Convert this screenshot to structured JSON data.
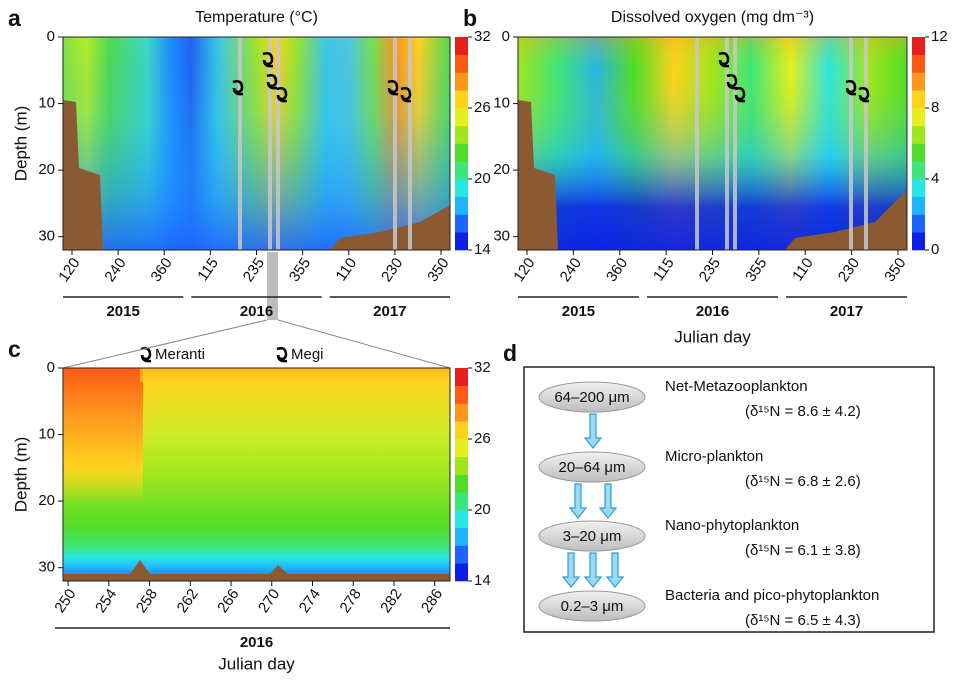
{
  "chart_data": [
    {
      "type": "contour",
      "label": "a",
      "title": "Temperature (°C)",
      "y_label": "Depth (m)",
      "ylim": [
        0,
        32
      ],
      "yticks": [
        0,
        10,
        20,
        30
      ],
      "y_inverted": true,
      "x_tick_labels": [
        "120",
        "240",
        "360",
        "115",
        "235",
        "355",
        "110",
        "230",
        "350"
      ],
      "years": [
        "2015",
        "2016",
        "2017"
      ],
      "clim": [
        14,
        32
      ],
      "cticks": [
        14,
        20,
        26,
        32
      ],
      "colormap": [
        "#0a1ee6",
        "#1e64ff",
        "#1eb4ff",
        "#28e6e6",
        "#3ce67a",
        "#50dc28",
        "#a0e61e",
        "#e6f01e",
        "#ffd21e",
        "#ff961e",
        "#ff5a14",
        "#e61e1e"
      ]
    },
    {
      "type": "contour",
      "label": "b",
      "title": "Dissolved oxygen (mg dm⁻³)",
      "x_label": "Julian day",
      "ylim": [
        0,
        32
      ],
      "yticks": [
        0,
        10,
        20,
        30
      ],
      "y_inverted": true,
      "x_tick_labels": [
        "120",
        "240",
        "360",
        "115",
        "235",
        "355",
        "110",
        "230",
        "350"
      ],
      "years": [
        "2015",
        "2016",
        "2017"
      ],
      "clim": [
        0,
        12
      ],
      "cticks": [
        0,
        4,
        8,
        12
      ],
      "colormap": [
        "#0a1ee6",
        "#1e64ff",
        "#1eb4ff",
        "#28e6e6",
        "#3ce67a",
        "#50dc28",
        "#a0e61e",
        "#e6f01e",
        "#ffd21e",
        "#ff961e",
        "#ff5a14",
        "#e61e1e"
      ]
    },
    {
      "type": "contour",
      "label": "c",
      "y_label": "Depth (m)",
      "x_label": "Julian day",
      "ylim": [
        0,
        32
      ],
      "yticks": [
        0,
        10,
        20,
        30
      ],
      "y_inverted": true,
      "xlim": [
        249.5,
        287.5
      ],
      "xticks": [
        250,
        254,
        258,
        262,
        266,
        270,
        274,
        278,
        282,
        286
      ],
      "years": [
        "2016"
      ],
      "events": [
        "Meranti",
        "Megi"
      ],
      "clim": [
        14,
        32
      ],
      "cticks": [
        14,
        20,
        26,
        32
      ],
      "colormap": [
        "#0a1ee6",
        "#1e64ff",
        "#1eb4ff",
        "#28e6e6",
        "#3ce67a",
        "#50dc28",
        "#a0e61e",
        "#e6f01e",
        "#ffd21e",
        "#ff961e",
        "#ff5a14",
        "#e61e1e"
      ]
    }
  ],
  "diagram": {
    "label": "d",
    "nodes": [
      {
        "size": "64–200 μm",
        "name": "Net-Metazooplankton",
        "isotope": "(δ¹⁵N = 8.6 ± 4.2)"
      },
      {
        "size": "20–64 μm",
        "name": "Micro-plankton",
        "isotope": "(δ¹⁵N = 6.8 ± 2.6)"
      },
      {
        "size": "3–20 μm",
        "name": "Nano-phytoplankton",
        "isotope": "(δ¹⁵N = 6.1 ± 3.8)"
      },
      {
        "size": "0.2–3 μm",
        "name": "Bacteria and pico-phytoplankton",
        "isotope": "(δ¹⁵N = 6.5 ± 4.3)"
      }
    ]
  }
}
